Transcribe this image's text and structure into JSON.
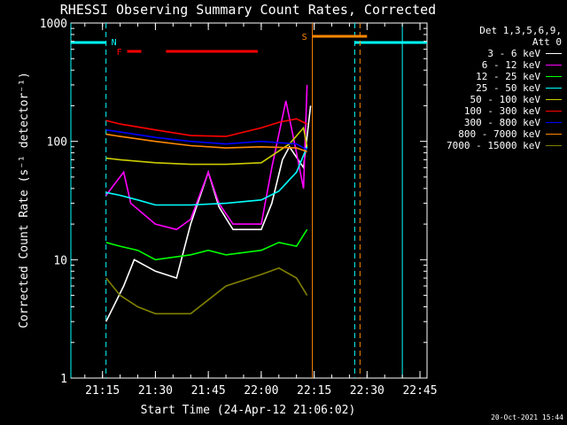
{
  "chart_data": {
    "type": "line",
    "title": "RHESSI Observing Summary Count Rates, Corrected",
    "xlabel": "Start Time (24-Apr-12 21:06:02)",
    "ylabel": "Corrected Count Rate (s⁻¹ detector⁻¹)",
    "yscale": "log",
    "ylim": [
      1,
      1000
    ],
    "xlim": [
      "21:06:02",
      "22:47:00"
    ],
    "x_ticks": [
      "21:15",
      "21:30",
      "21:45",
      "22:00",
      "22:15",
      "22:30",
      "22:45"
    ],
    "y_ticks": [
      "1",
      "10",
      "100",
      "1000"
    ],
    "grid": false,
    "legend_placement": "right",
    "legend_title": [
      "Det 1,3,5,6,9,",
      "Att 0"
    ],
    "series": [
      {
        "name": "3 - 6 keV",
        "color": "#ffffff",
        "x": [
          "21:16",
          "21:21",
          "21:24",
          "21:30",
          "21:36",
          "21:40",
          "21:45",
          "21:48",
          "21:52",
          "22:00",
          "22:03",
          "22:06",
          "22:08",
          "22:12",
          "22:14"
        ],
        "values": [
          3,
          6,
          10,
          8,
          7,
          20,
          55,
          28,
          18,
          18,
          30,
          70,
          90,
          60,
          200
        ]
      },
      {
        "name": "6 - 12 keV",
        "color": "#ff00ff",
        "x": [
          "21:16",
          "21:21",
          "21:23",
          "21:30",
          "21:36",
          "21:40",
          "21:45",
          "21:48",
          "21:52",
          "22:00",
          "22:03",
          "22:07",
          "22:10",
          "22:12",
          "22:13"
        ],
        "values": [
          35,
          55,
          30,
          20,
          18,
          22,
          55,
          30,
          20,
          20,
          60,
          220,
          80,
          40,
          300
        ]
      },
      {
        "name": "12 - 25 keV",
        "color": "#00ff00",
        "x": [
          "21:16",
          "21:20",
          "21:25",
          "21:30",
          "21:40",
          "21:45",
          "21:50",
          "22:00",
          "22:05",
          "22:10",
          "22:13"
        ],
        "values": [
          14,
          13,
          12,
          10,
          11,
          12,
          11,
          12,
          14,
          13,
          18
        ]
      },
      {
        "name": "25 - 50 keV",
        "color": "#00ffff",
        "x": [
          "21:16",
          "21:20",
          "21:25",
          "21:30",
          "21:40",
          "21:50",
          "22:00",
          "22:05",
          "22:10",
          "22:13"
        ],
        "values": [
          37,
          35,
          32,
          29,
          29,
          30,
          32,
          38,
          55,
          90
        ]
      },
      {
        "name": "50 - 100 keV",
        "color": "#cccc00",
        "x": [
          "21:16",
          "21:20",
          "21:30",
          "21:40",
          "21:50",
          "22:00",
          "22:08",
          "22:12",
          "22:13"
        ],
        "values": [
          72,
          70,
          66,
          64,
          64,
          66,
          95,
          130,
          90
        ]
      },
      {
        "name": "100 - 300 keV",
        "color": "#ff0000",
        "x": [
          "21:16",
          "21:20",
          "21:30",
          "21:40",
          "21:50",
          "22:00",
          "22:05",
          "22:10",
          "22:13"
        ],
        "values": [
          150,
          140,
          125,
          112,
          110,
          130,
          145,
          155,
          140
        ]
      },
      {
        "name": "300 - 800 keV",
        "color": "#0000ff",
        "x": [
          "21:16",
          "21:20",
          "21:30",
          "21:40",
          "21:50",
          "22:00",
          "22:10",
          "22:13"
        ],
        "values": [
          125,
          120,
          108,
          100,
          95,
          100,
          95,
          85
        ]
      },
      {
        "name": "800 - 7000 keV",
        "color": "#ff8800",
        "x": [
          "21:16",
          "21:20",
          "21:30",
          "21:40",
          "21:50",
          "22:00",
          "22:10",
          "22:13"
        ],
        "values": [
          115,
          110,
          100,
          92,
          88,
          90,
          88,
          82
        ]
      },
      {
        "name": "7000 - 15000 keV",
        "color": "#808000",
        "x": [
          "21:16",
          "21:20",
          "21:25",
          "21:30",
          "21:40",
          "21:50",
          "22:00",
          "22:05",
          "22:10",
          "22:13"
        ],
        "values": [
          7,
          5,
          4,
          3.5,
          3.5,
          6,
          7.5,
          8.5,
          7,
          5
        ]
      }
    ],
    "annotations": [
      {
        "label": "N",
        "color": "#00ffff",
        "type": "night",
        "x_start": "21:06:02",
        "x_end": "21:16:00",
        "solid_line_x": "21:06:02",
        "dashed_line_x": "21:16:00"
      },
      {
        "label": "",
        "color": "#00ffff",
        "type": "night",
        "x_start": "22:26:30",
        "x_end": "22:47:00",
        "solid_line_x": "22:40:00",
        "dashed_line_x": "22:26:30"
      },
      {
        "label": "F",
        "color": "#ff0000",
        "type": "flare-bars",
        "segments": [
          [
            "21:22",
            "21:26"
          ],
          [
            "21:33",
            "21:59"
          ]
        ]
      },
      {
        "label": "S",
        "color": "#ff8800",
        "type": "saa",
        "x_start": "22:14:30",
        "x_end": "22:30:00",
        "solid_line_x": "22:14:30",
        "dashed_line_x": "22:28:00"
      }
    ]
  },
  "footer": {
    "timestamp": "20-Oct-2021 15:44"
  }
}
